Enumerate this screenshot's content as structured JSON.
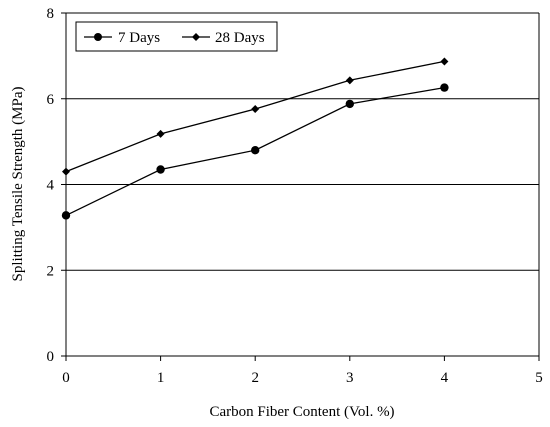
{
  "chart_data": {
    "type": "line",
    "title": "",
    "xlabel": "Carbon Fiber Content (Vol. %)",
    "ylabel": "Splitting Tensile Strength (MPa)",
    "xlim": [
      0,
      5
    ],
    "ylim": [
      0,
      8
    ],
    "xticks": [
      "0",
      "1",
      "2",
      "3",
      "4",
      "5"
    ],
    "yticks": [
      "0",
      "2",
      "4",
      "6",
      "8"
    ],
    "grid": "horizontal major gridlines",
    "legend_position": "top-left",
    "x": [
      0,
      1,
      2,
      3,
      4
    ],
    "series": [
      {
        "name": "7 Days",
        "marker": "circle",
        "color": "#000000",
        "values": [
          3.28,
          4.35,
          4.8,
          5.88,
          6.26
        ]
      },
      {
        "name": "28 Days",
        "marker": "diamond",
        "color": "#000000",
        "values": [
          4.3,
          5.18,
          5.76,
          6.43,
          6.87
        ]
      }
    ]
  }
}
